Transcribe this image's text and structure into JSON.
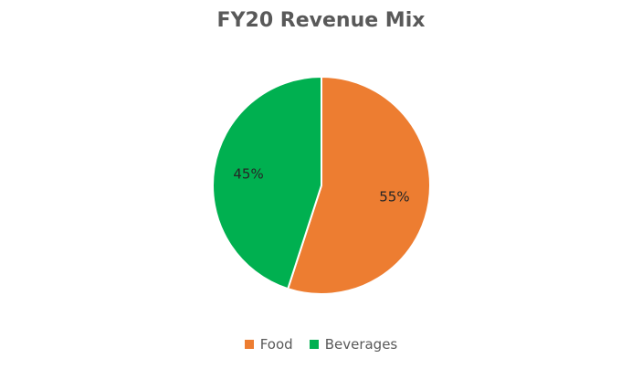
{
  "chart_data": {
    "type": "pie",
    "title": "FY20 Revenue Mix",
    "categories": [
      "Food",
      "Beverages"
    ],
    "values": [
      55,
      45
    ],
    "labels": [
      "55%",
      "45%"
    ],
    "colors": [
      "#ED7D31",
      "#00B050"
    ],
    "legend_position": "bottom",
    "start_angle": "12 o'clock",
    "direction": "clockwise"
  }
}
